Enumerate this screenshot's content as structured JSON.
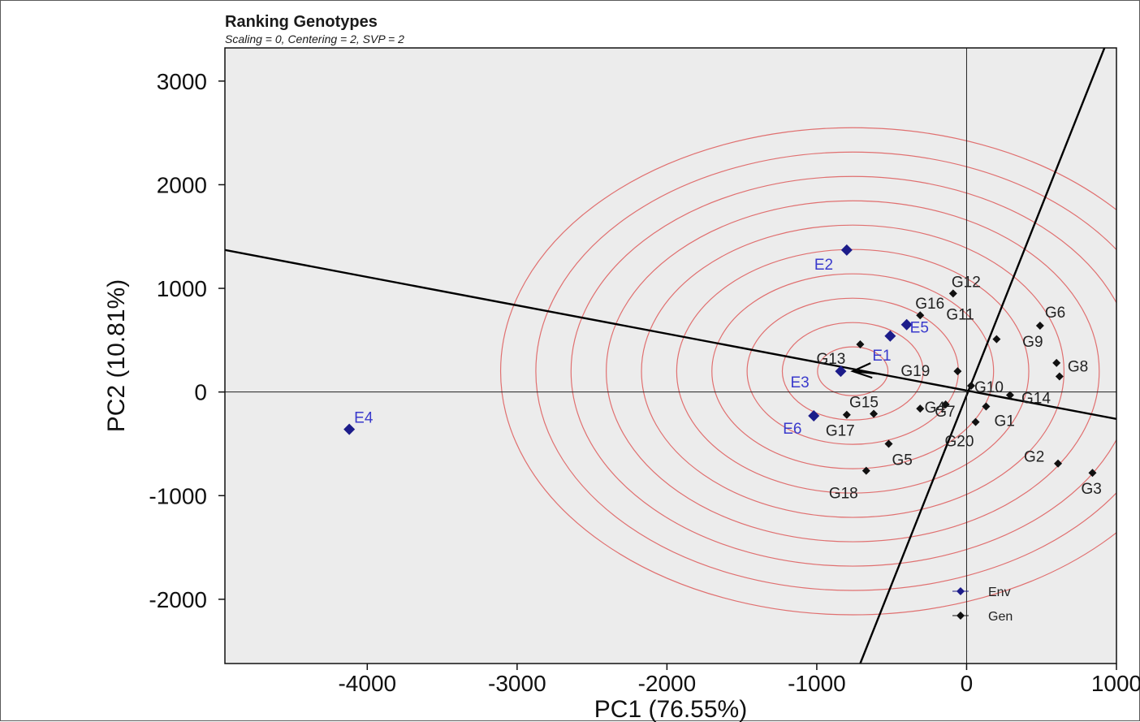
{
  "chart_data": {
    "type": "scatter",
    "title": "Ranking Genotypes",
    "subtitle": "Scaling = 0, Centering = 2, SVP = 2",
    "xlabel": "PC1 (76.55%)",
    "ylabel": "PC2 (10.81%)",
    "xlim": [
      -4950,
      1000
    ],
    "ylim": [
      -2620,
      3320
    ],
    "xticks": [
      -4000,
      -3000,
      -2000,
      -1000,
      0,
      1000
    ],
    "yticks": [
      -2000,
      -1000,
      0,
      1000,
      2000,
      3000
    ],
    "xtick_labels": [
      "-4000",
      "-3000",
      "-2000",
      "-1000",
      "0",
      "1000"
    ],
    "ytick_labels": [
      "-2000",
      "-1000",
      "0",
      "1000",
      "2000",
      "3000"
    ],
    "grid": false,
    "legend_position": "bottom-right",
    "series": [
      {
        "name": "Env",
        "color": "#1c1c8a",
        "marker": "diamond",
        "points": [
          {
            "label": "E1",
            "x": -510,
            "y": 540
          },
          {
            "label": "E2",
            "x": -800,
            "y": 1370
          },
          {
            "label": "E3",
            "x": -840,
            "y": 200
          },
          {
            "label": "E4",
            "x": -4120,
            "y": -360
          },
          {
            "label": "E5",
            "x": -400,
            "y": 650
          },
          {
            "label": "E6",
            "x": -1020,
            "y": -230
          }
        ]
      },
      {
        "name": "Gen",
        "color": "#111111",
        "marker": "diamond",
        "points": [
          {
            "label": "G1",
            "x": 130,
            "y": -140
          },
          {
            "label": "G2",
            "x": 610,
            "y": -690
          },
          {
            "label": "G3",
            "x": 840,
            "y": -780
          },
          {
            "label": "G4",
            "x": -140,
            "y": -120
          },
          {
            "label": "G5",
            "x": -520,
            "y": -500
          },
          {
            "label": "G6",
            "x": 490,
            "y": 640
          },
          {
            "label": "G7",
            "x": -310,
            "y": -160
          },
          {
            "label": "G8",
            "x": 620,
            "y": 150
          },
          {
            "label": "G9",
            "x": 600,
            "y": 280
          },
          {
            "label": "G10",
            "x": 30,
            "y": 60
          },
          {
            "label": "G11",
            "x": 200,
            "y": 510
          },
          {
            "label": "G12",
            "x": -90,
            "y": 950
          },
          {
            "label": "G13",
            "x": -710,
            "y": 460
          },
          {
            "label": "G14",
            "x": 290,
            "y": -30
          },
          {
            "label": "G15",
            "x": -620,
            "y": -210
          },
          {
            "label": "G16",
            "x": -310,
            "y": 740
          },
          {
            "label": "G17",
            "x": -800,
            "y": -220
          },
          {
            "label": "G18",
            "x": -670,
            "y": -760
          },
          {
            "label": "G19",
            "x": -60,
            "y": 200
          },
          {
            "label": "G20",
            "x": 60,
            "y": -290
          }
        ]
      }
    ],
    "lines": [
      {
        "name": "average-environment-abscissa",
        "x1": -4950,
        "y1": 1370,
        "x2": 1000,
        "y2": -260
      },
      {
        "name": "average-environment-ordinate",
        "x1": -710,
        "y1": -2620,
        "x2": 920,
        "y2": 3320
      }
    ],
    "ideal_point": {
      "x": -760,
      "y": 200
    },
    "concentric_circles": {
      "center_x": -760,
      "center_y": 200,
      "count": 10,
      "radius_step": 235,
      "color": "#e07070"
    },
    "colors": {
      "plot_background": "#ececec",
      "axis": "#111111",
      "circle": "#e07070",
      "env": "#1c1c8a",
      "env_label": "#3a3acc",
      "gen": "#111111",
      "gen_label": "#222222"
    }
  }
}
